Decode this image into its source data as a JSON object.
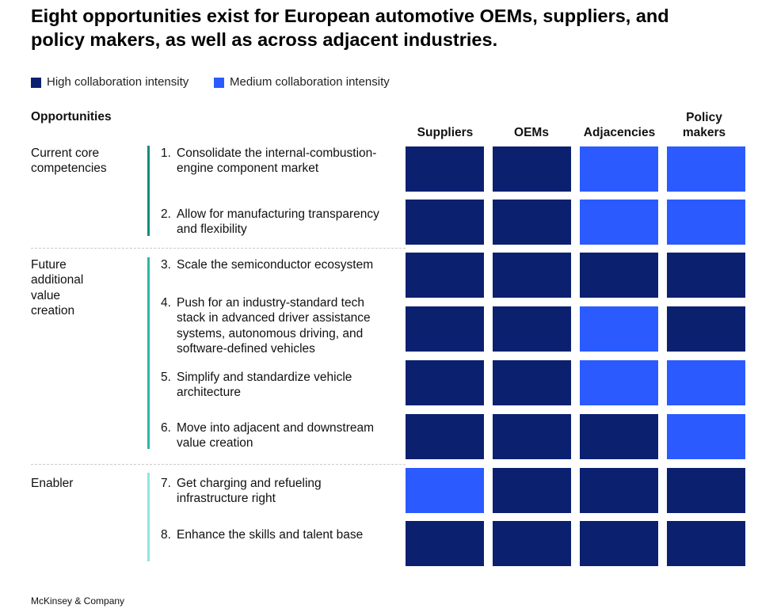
{
  "title": "Eight opportunities exist for European automotive OEMs, suppliers, and policy makers, as well as across adjacent industries.",
  "legend": [
    {
      "label": "High collaboration intensity",
      "color": "#0c2070",
      "level": "high"
    },
    {
      "label": "Medium collaboration intensity",
      "color": "#2b5bff",
      "level": "medium"
    }
  ],
  "opportunities_header": "Opportunities",
  "columns": [
    "Suppliers",
    "OEMs",
    "Adjacencies",
    "Policy makers"
  ],
  "groups": [
    {
      "label": "Current core competencies",
      "bar_color": "#138b7a",
      "items": [
        {
          "number": "1.",
          "text": "Consolidate the internal-combustion-engine component market",
          "intensity": [
            "high",
            "high",
            "medium",
            "medium"
          ]
        },
        {
          "number": "2.",
          "text": "Allow for manufacturing transparency and flexibility",
          "intensity": [
            "high",
            "high",
            "medium",
            "medium"
          ]
        }
      ]
    },
    {
      "label": "Future additional value creation",
      "bar_color": "#2cb7a3",
      "items": [
        {
          "number": "3.",
          "text": "Scale the semiconductor ecosystem",
          "intensity": [
            "high",
            "high",
            "high",
            "high"
          ]
        },
        {
          "number": "4.",
          "text": "Push for an industry-standard tech stack in advanced driver assistance systems, autonomous driving, and software-defined vehicles",
          "intensity": [
            "high",
            "high",
            "medium",
            "high"
          ]
        },
        {
          "number": "5.",
          "text": "Simplify and standardize vehicle architecture",
          "intensity": [
            "high",
            "high",
            "medium",
            "medium"
          ]
        },
        {
          "number": "6.",
          "text": "Move into adjacent and downstream value creation",
          "intensity": [
            "high",
            "high",
            "high",
            "medium"
          ]
        }
      ]
    },
    {
      "label": "Enabler",
      "bar_color": "#8ee6e1",
      "items": [
        {
          "number": "7.",
          "text": "Get charging and refueling infrastructure right",
          "intensity": [
            "medium",
            "high",
            "high",
            "high"
          ]
        },
        {
          "number": "8.",
          "text": "Enhance the skills and talent base",
          "intensity": [
            "high",
            "high",
            "high",
            "high"
          ]
        }
      ]
    }
  ],
  "footer": "McKinsey & Company"
}
